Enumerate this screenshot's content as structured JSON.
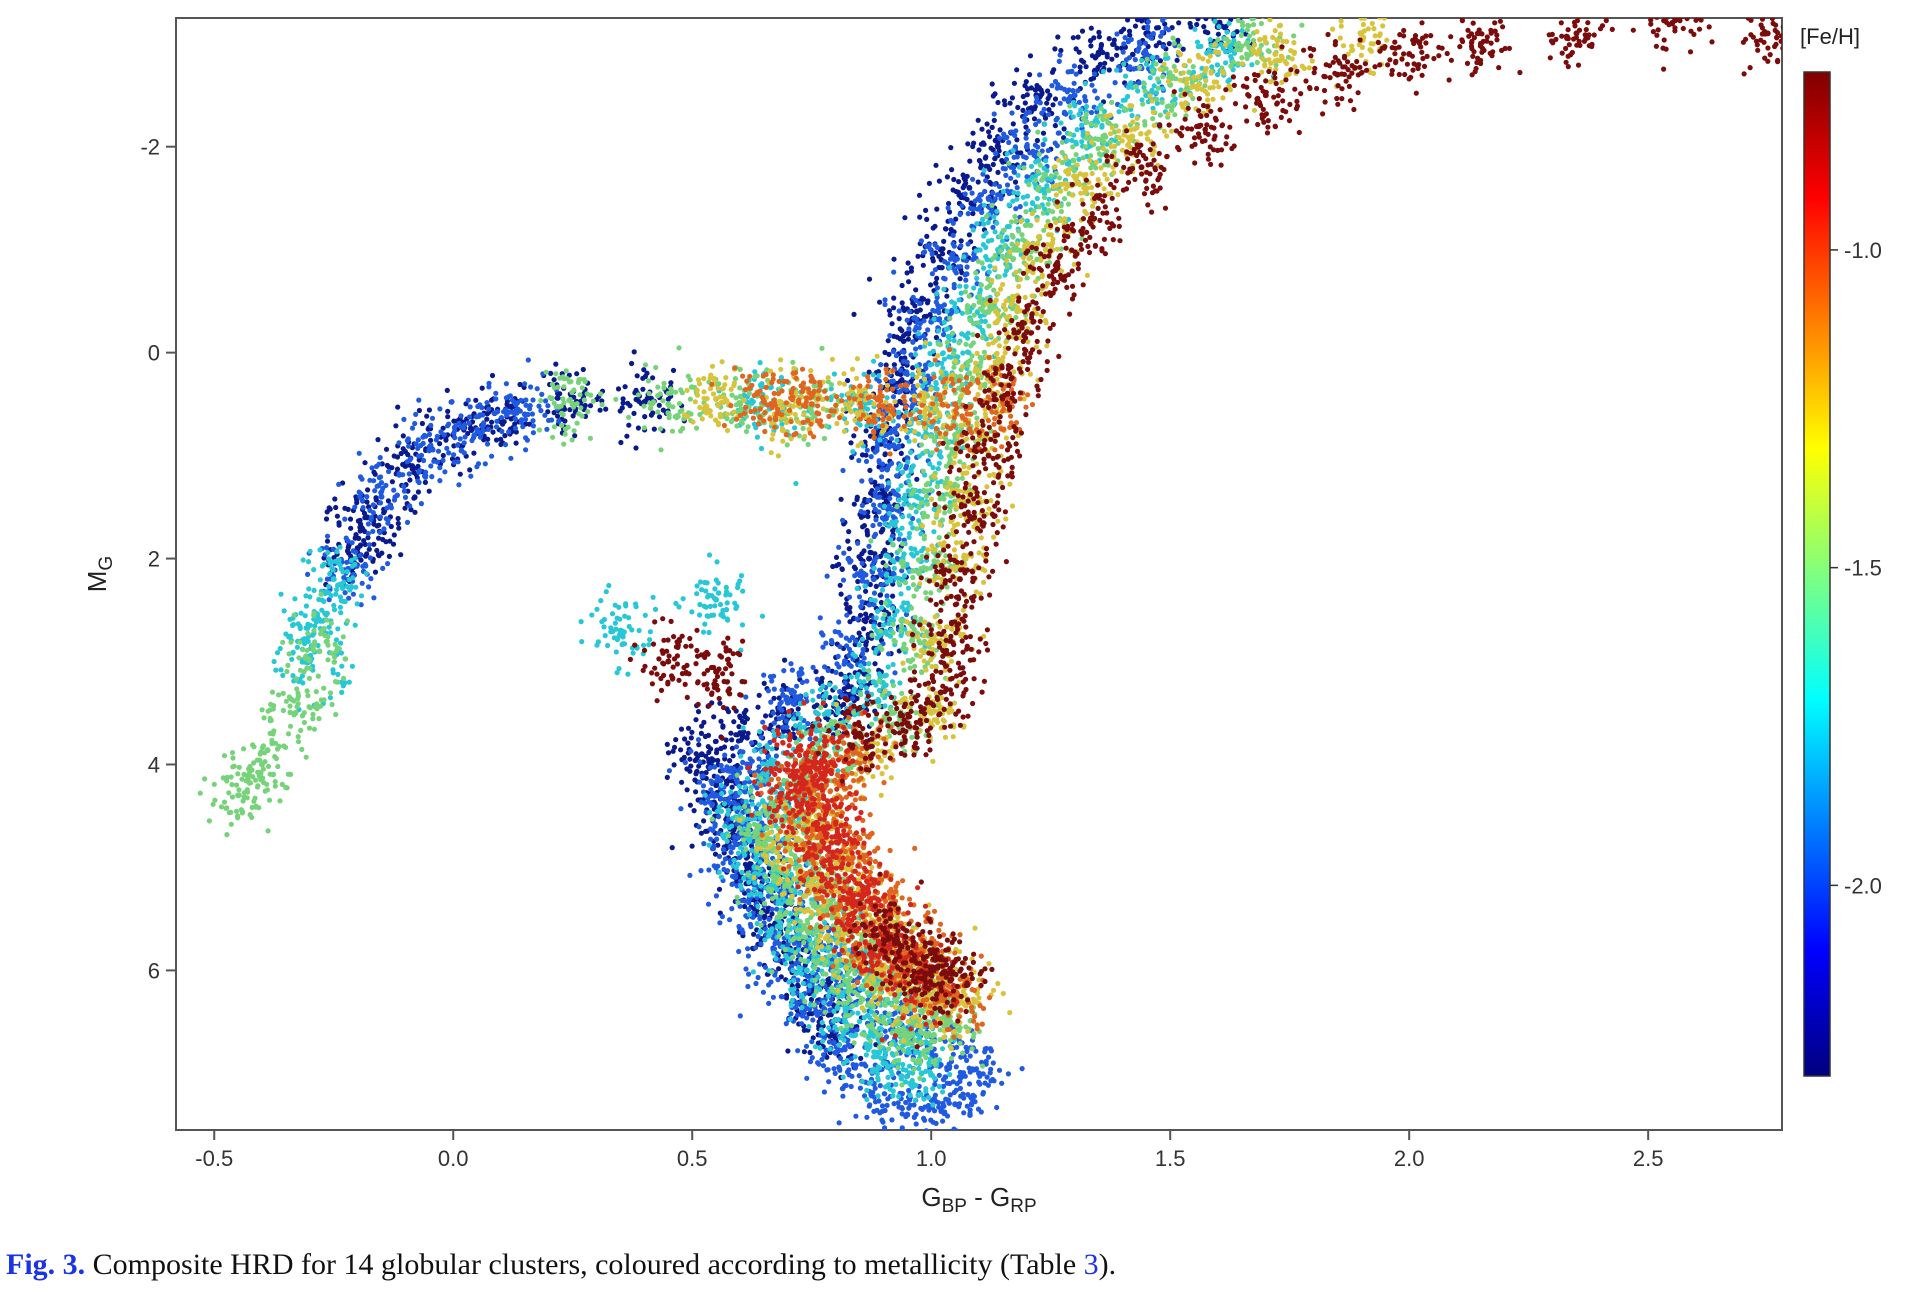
{
  "chart_data": {
    "type": "scatter",
    "title": "",
    "xlabel": {
      "main": "G",
      "sub1": "BP",
      "mid": " - G",
      "sub2": "RP"
    },
    "ylabel": {
      "main": "M",
      "sub": "G"
    },
    "xlim": [
      -0.58,
      2.78
    ],
    "ylim": [
      7.55,
      -3.25
    ],
    "y_inverted": true,
    "xticks": [
      {
        "value": -0.5,
        "label": "-0.5"
      },
      {
        "value": 0.0,
        "label": "0.0"
      },
      {
        "value": 0.5,
        "label": "0.5"
      },
      {
        "value": 1.0,
        "label": "1.0"
      },
      {
        "value": 1.5,
        "label": "1.5"
      },
      {
        "value": 2.0,
        "label": "2.0"
      },
      {
        "value": 2.5,
        "label": "2.5"
      }
    ],
    "yticks": [
      {
        "value": -2,
        "label": "-2"
      },
      {
        "value": 0,
        "label": "0"
      },
      {
        "value": 2,
        "label": "2"
      },
      {
        "value": 4,
        "label": "4"
      },
      {
        "value": 6,
        "label": "6"
      }
    ],
    "grid": false,
    "colorbar": {
      "title": "[Fe/H]",
      "range": [
        -2.3,
        -0.72
      ],
      "ticks": [
        {
          "value": -1.0,
          "label": "-1.0"
        },
        {
          "value": -1.5,
          "label": "-1.5"
        },
        {
          "value": -2.0,
          "label": "-2.0"
        }
      ],
      "colormap": [
        "#00007f",
        "#0000ff",
        "#007fff",
        "#00ffff",
        "#7fff7f",
        "#ffff00",
        "#ff7f00",
        "#ff0000",
        "#7f0000"
      ]
    },
    "marker_radius_data": 0.0,
    "series": [
      {
        "feh": -2.25,
        "color": "#0a1a8c",
        "points": [
          [
            0.52,
            3.9
          ],
          [
            0.55,
            4.2
          ],
          [
            0.58,
            4.6
          ],
          [
            0.62,
            5.0
          ],
          [
            0.66,
            5.4
          ],
          [
            0.7,
            5.8
          ],
          [
            0.75,
            6.2
          ],
          [
            0.8,
            6.6
          ],
          [
            0.85,
            3.2
          ],
          [
            0.8,
            3.4
          ],
          [
            0.7,
            3.5
          ],
          [
            0.6,
            3.7
          ],
          [
            0.86,
            2.6
          ],
          [
            0.87,
            2.0
          ],
          [
            0.89,
            1.4
          ],
          [
            0.9,
            0.8
          ],
          [
            0.93,
            0.2
          ],
          [
            0.97,
            -0.4
          ],
          [
            1.02,
            -1.0
          ],
          [
            1.08,
            -1.6
          ],
          [
            1.14,
            -2.0
          ],
          [
            1.22,
            -2.5
          ],
          [
            1.35,
            -2.9
          ],
          [
            1.45,
            -3.1
          ],
          [
            1.6,
            -3.2
          ],
          [
            -0.18,
            1.6
          ],
          [
            -0.1,
            1.1
          ],
          [
            0.0,
            0.8
          ],
          [
            0.1,
            0.65
          ],
          [
            -0.2,
            1.9
          ],
          [
            0.25,
            0.5
          ],
          [
            0.4,
            0.48
          ]
        ]
      },
      {
        "feh": -2.05,
        "color": "#1f5ae0",
        "points": [
          [
            0.55,
            4.3
          ],
          [
            0.58,
            4.8
          ],
          [
            0.62,
            5.3
          ],
          [
            0.67,
            5.8
          ],
          [
            0.73,
            6.3
          ],
          [
            0.8,
            6.8
          ],
          [
            0.88,
            7.1
          ],
          [
            0.95,
            7.4
          ],
          [
            1.05,
            7.3
          ],
          [
            1.1,
            7.0
          ],
          [
            1.0,
            6.8
          ],
          [
            0.92,
            6.5
          ],
          [
            0.84,
            6.2
          ],
          [
            0.78,
            5.8
          ],
          [
            0.7,
            5.2
          ],
          [
            0.65,
            4.6
          ],
          [
            0.62,
            4.0
          ],
          [
            0.7,
            3.4
          ],
          [
            0.82,
            3.0
          ],
          [
            0.88,
            2.2
          ],
          [
            0.9,
            1.5
          ],
          [
            0.92,
            0.9
          ],
          [
            0.95,
            0.3
          ],
          [
            1.0,
            -0.3
          ],
          [
            1.05,
            -0.9
          ],
          [
            1.12,
            -1.5
          ],
          [
            1.2,
            -2.0
          ],
          [
            1.3,
            -2.5
          ],
          [
            1.45,
            -2.9
          ],
          [
            -0.15,
            1.4
          ],
          [
            -0.05,
            0.95
          ],
          [
            0.05,
            0.75
          ],
          [
            0.15,
            0.6
          ],
          [
            -0.22,
            2.1
          ]
        ]
      },
      {
        "feh": -1.8,
        "color": "#27c7d6",
        "points": [
          [
            0.6,
            4.5
          ],
          [
            0.63,
            5.0
          ],
          [
            0.68,
            5.5
          ],
          [
            0.74,
            6.0
          ],
          [
            0.82,
            6.5
          ],
          [
            0.9,
            6.9
          ],
          [
            0.98,
            7.0
          ],
          [
            0.95,
            6.6
          ],
          [
            0.88,
            6.2
          ],
          [
            0.8,
            5.7
          ],
          [
            0.74,
            5.1
          ],
          [
            0.7,
            4.5
          ],
          [
            0.68,
            4.0
          ],
          [
            0.76,
            3.6
          ],
          [
            0.88,
            3.2
          ],
          [
            0.92,
            2.6
          ],
          [
            0.94,
            2.0
          ],
          [
            0.97,
            1.4
          ],
          [
            1.0,
            0.8
          ],
          [
            1.03,
            0.2
          ],
          [
            1.08,
            -0.4
          ],
          [
            1.14,
            -1.0
          ],
          [
            1.22,
            -1.6
          ],
          [
            1.32,
            -2.1
          ],
          [
            1.45,
            -2.5
          ],
          [
            1.6,
            -2.9
          ],
          [
            -0.25,
            2.2
          ],
          [
            -0.28,
            2.6
          ],
          [
            -0.3,
            3.0
          ],
          [
            0.35,
            2.7
          ],
          [
            0.55,
            2.4
          ],
          [
            0.85,
            0.5
          ],
          [
            0.65,
            0.5
          ]
        ]
      },
      {
        "feh": -1.55,
        "color": "#77d37a",
        "points": [
          [
            0.64,
            4.6
          ],
          [
            0.68,
            5.1
          ],
          [
            0.74,
            5.6
          ],
          [
            0.82,
            6.1
          ],
          [
            0.9,
            6.5
          ],
          [
            0.98,
            6.7
          ],
          [
            1.04,
            6.5
          ],
          [
            0.96,
            6.2
          ],
          [
            0.88,
            5.9
          ],
          [
            0.8,
            5.4
          ],
          [
            0.76,
            4.9
          ],
          [
            0.72,
            4.3
          ],
          [
            0.8,
            3.8
          ],
          [
            0.92,
            3.5
          ],
          [
            0.96,
            2.8
          ],
          [
            0.99,
            2.1
          ],
          [
            1.02,
            1.4
          ],
          [
            1.05,
            0.8
          ],
          [
            1.08,
            0.2
          ],
          [
            1.12,
            -0.4
          ],
          [
            1.18,
            -1.0
          ],
          [
            1.26,
            -1.6
          ],
          [
            1.36,
            -2.1
          ],
          [
            1.5,
            -2.6
          ],
          [
            1.66,
            -3.0
          ],
          [
            -0.45,
            4.3
          ],
          [
            -0.4,
            4.0
          ],
          [
            -0.33,
            3.5
          ],
          [
            -0.28,
            2.9
          ],
          [
            0.25,
            0.5
          ],
          [
            0.45,
            0.5
          ],
          [
            0.6,
            0.5
          ],
          [
            0.75,
            0.52
          ]
        ]
      },
      {
        "feh": -1.3,
        "color": "#d8c43c",
        "points": [
          [
            0.7,
            4.7
          ],
          [
            0.75,
            5.2
          ],
          [
            0.82,
            5.6
          ],
          [
            0.9,
            6.0
          ],
          [
            0.98,
            6.3
          ],
          [
            1.06,
            6.3
          ],
          [
            0.98,
            5.9
          ],
          [
            0.9,
            5.5
          ],
          [
            0.82,
            5.0
          ],
          [
            0.76,
            4.5
          ],
          [
            0.88,
            3.9
          ],
          [
            1.0,
            3.5
          ],
          [
            1.02,
            2.8
          ],
          [
            1.05,
            2.0
          ],
          [
            1.08,
            1.4
          ],
          [
            1.11,
            0.8
          ],
          [
            1.14,
            0.2
          ],
          [
            1.18,
            -0.4
          ],
          [
            1.24,
            -1.0
          ],
          [
            1.32,
            -1.6
          ],
          [
            1.42,
            -2.1
          ],
          [
            1.56,
            -2.6
          ],
          [
            1.72,
            -2.9
          ],
          [
            1.9,
            -3.1
          ],
          [
            0.7,
            0.5
          ],
          [
            0.85,
            0.5
          ],
          [
            1.0,
            0.5
          ],
          [
            0.55,
            0.45
          ]
        ]
      },
      {
        "feh": -1.05,
        "color": "#e0651e",
        "points": [
          [
            0.72,
            4.3
          ],
          [
            0.76,
            4.8
          ],
          [
            0.82,
            5.3
          ],
          [
            0.9,
            5.8
          ],
          [
            0.98,
            6.1
          ],
          [
            1.05,
            6.2
          ],
          [
            0.98,
            5.8
          ],
          [
            0.9,
            5.3
          ],
          [
            0.84,
            4.8
          ],
          [
            0.78,
            4.2
          ],
          [
            0.85,
            3.9
          ],
          [
            0.75,
            0.5
          ],
          [
            0.9,
            0.52
          ],
          [
            1.05,
            0.5
          ],
          [
            1.15,
            0.48
          ],
          [
            0.65,
            0.48
          ]
        ]
      },
      {
        "feh": -0.9,
        "color": "#d3271d",
        "points": [
          [
            0.7,
            4.0
          ],
          [
            0.72,
            4.4
          ],
          [
            0.76,
            4.9
          ],
          [
            0.82,
            5.4
          ],
          [
            0.9,
            5.8
          ],
          [
            0.98,
            6.1
          ],
          [
            0.92,
            5.7
          ],
          [
            0.86,
            5.2
          ],
          [
            0.8,
            4.7
          ],
          [
            0.76,
            4.2
          ],
          [
            0.78,
            3.9
          ]
        ]
      },
      {
        "feh": -0.75,
        "color": "#7a0c0c",
        "points": [
          [
            0.85,
            3.7
          ],
          [
            0.95,
            3.6
          ],
          [
            1.02,
            3.3
          ],
          [
            1.04,
            2.8
          ],
          [
            1.06,
            2.2
          ],
          [
            1.09,
            1.6
          ],
          [
            1.12,
            1.0
          ],
          [
            1.16,
            0.4
          ],
          [
            1.2,
            -0.2
          ],
          [
            1.26,
            -0.8
          ],
          [
            1.34,
            -1.3
          ],
          [
            1.44,
            -1.8
          ],
          [
            1.56,
            -2.2
          ],
          [
            1.7,
            -2.5
          ],
          [
            1.85,
            -2.7
          ],
          [
            2.0,
            -2.9
          ],
          [
            2.15,
            -3.0
          ],
          [
            2.35,
            -3.1
          ],
          [
            2.55,
            -3.2
          ],
          [
            2.75,
            -3.1
          ],
          [
            0.96,
            5.9
          ],
          [
            1.0,
            6.0
          ],
          [
            1.04,
            6.1
          ],
          [
            0.9,
            5.6
          ],
          [
            0.45,
            3.0
          ],
          [
            0.55,
            3.1
          ]
        ]
      }
    ]
  },
  "colorbar_gradient_colors": [
    "#00007f",
    "#0000ff",
    "#007fff",
    "#00ffff",
    "#7fff7f",
    "#ffff00",
    "#ff7f00",
    "#ff0000",
    "#7f0000"
  ],
  "caption": {
    "fig_label": "Fig. 3.",
    "text_before": " Composite HRD for 14 globular clusters, coloured according to metallicity (Table ",
    "table_ref": "3",
    "text_after": ")."
  }
}
